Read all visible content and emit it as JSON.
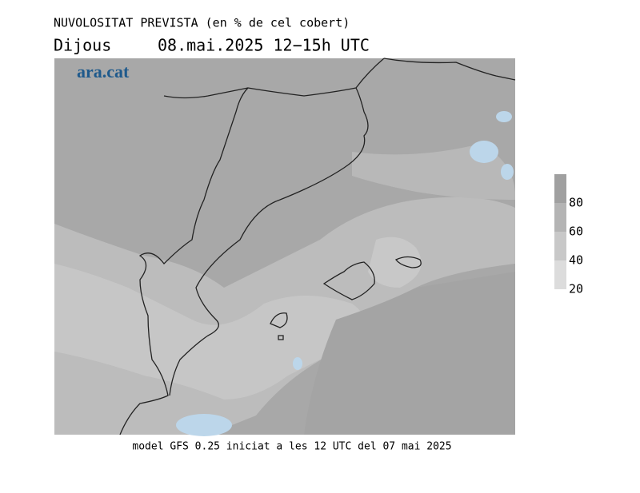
{
  "header": {
    "title": "NUVOLOSITAT PREVISTA (en % de cel cobert)",
    "day": "Dijous",
    "date": "08.mai.2025 12−15h UTC"
  },
  "logo": "ara.cat",
  "footer": "model GFS 0.25 iniciat a les 12 UTC del 07 mai 2025",
  "legend": {
    "range": [
      20,
      100
    ],
    "ticks": [
      20,
      40,
      60,
      80
    ],
    "bands": [
      {
        "from": 20,
        "to": 40,
        "color": "#dcdcdc"
      },
      {
        "from": 40,
        "to": 60,
        "color": "#c8c8c8"
      },
      {
        "from": 60,
        "to": 80,
        "color": "#b4b4b4"
      },
      {
        "from": 80,
        "to": 100,
        "color": "#a0a0a0"
      }
    ]
  }
}
